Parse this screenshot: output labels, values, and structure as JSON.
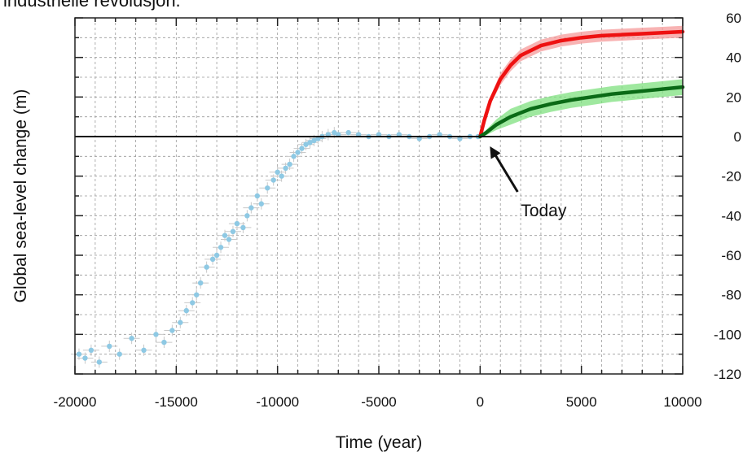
{
  "caption_fragment": "industrielle revolusjon.",
  "chart_data": {
    "type": "scatter",
    "title": "",
    "xlabel": "Time (year)",
    "ylabel": "Global sea-level change (m)",
    "xlim": [
      -20000,
      10000
    ],
    "ylim": [
      -120,
      60
    ],
    "x_ticks": [
      -20000,
      -15000,
      -10000,
      -5000,
      0,
      5000,
      10000
    ],
    "y_ticks": [
      -120,
      -100,
      -80,
      -60,
      -40,
      -20,
      0,
      20,
      40,
      60
    ],
    "x_tick_labels": [
      "-20000",
      "-15000",
      "-10000",
      "-5000",
      "0",
      "5000",
      "10000"
    ],
    "y_tick_labels": [
      "-120",
      "-100",
      "-80",
      "-60",
      "-40",
      "-20",
      "0",
      "20",
      "40",
      "60"
    ],
    "grid": true,
    "zero_line": 0,
    "colors": {
      "observations": "#8ec9e4",
      "observation_error": "#c8c8c8",
      "high_scenario": "#ee1111",
      "high_band": "#f59a9a",
      "low_scenario": "#0a6a16",
      "low_band": "#7fe07f"
    },
    "annotation": {
      "text": "Today",
      "x": 0,
      "y": 0
    },
    "observations": {
      "x": [
        -19800,
        -19500,
        -19200,
        -18800,
        -18300,
        -17800,
        -17200,
        -16600,
        -16000,
        -15600,
        -15200,
        -14800,
        -14500,
        -14200,
        -14000,
        -13800,
        -13500,
        -13200,
        -13000,
        -12800,
        -12600,
        -12400,
        -12200,
        -12000,
        -11700,
        -11500,
        -11300,
        -11000,
        -10800,
        -10500,
        -10200,
        -10000,
        -9800,
        -9600,
        -9400,
        -9200,
        -9000,
        -8800,
        -8600,
        -8400,
        -8200,
        -8000,
        -7800,
        -7500,
        -7200,
        -7000,
        -6500,
        -6000,
        -5500,
        -5000,
        -4500,
        -4000,
        -3500,
        -3000,
        -2500,
        -2000,
        -1500,
        -1000,
        -500,
        -100
      ],
      "y": [
        -110,
        -112,
        -108,
        -114,
        -106,
        -110,
        -102,
        -108,
        -100,
        -104,
        -98,
        -94,
        -88,
        -84,
        -80,
        -74,
        -66,
        -62,
        -60,
        -56,
        -50,
        -52,
        -48,
        -44,
        -46,
        -40,
        -36,
        -30,
        -34,
        -26,
        -22,
        -18,
        -20,
        -16,
        -14,
        -10,
        -8,
        -6,
        -4,
        -3,
        -2,
        -1,
        0,
        1,
        2,
        1,
        2,
        1,
        0,
        1,
        0,
        1,
        0,
        -1,
        0,
        1,
        0,
        -1,
        0,
        0
      ]
    },
    "series": [
      {
        "x": [
          0,
          200,
          500,
          1000,
          1500,
          2000,
          3000,
          4000,
          5000,
          6000,
          7000,
          8000,
          9000,
          10000
        ],
        "y": [
          0,
          8,
          18,
          29,
          36,
          41,
          46,
          48.5,
          50,
          51,
          51.5,
          52,
          52.5,
          53
        ]
      },
      {
        "x": [
          0,
          300,
          800,
          1500,
          2500,
          3500,
          4500,
          5500,
          6500,
          7500,
          8500,
          10000
        ],
        "y": [
          0,
          2,
          6,
          10,
          14,
          16.5,
          18.5,
          20,
          21.5,
          22.5,
          23.5,
          25
        ]
      }
    ]
  }
}
